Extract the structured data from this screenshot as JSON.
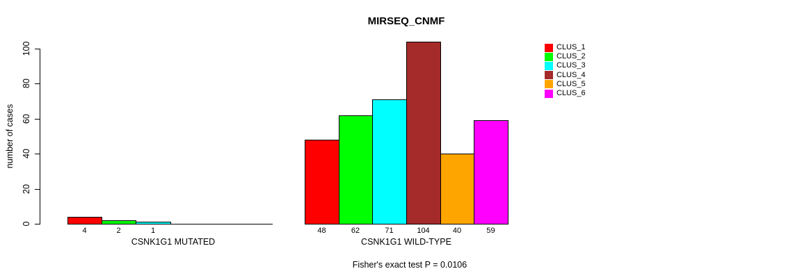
{
  "chart_data": {
    "type": "bar",
    "title": "MIRSEQ_CNMF",
    "ylabel": "number of cases",
    "ylim": [
      0,
      100
    ],
    "yticks": [
      0,
      20,
      40,
      60,
      80,
      100
    ],
    "grid": false,
    "bar_border_color": "#000000",
    "annotation": "Fisher's exact test P = 0.0106",
    "legend": {
      "position": "right",
      "entries": [
        {
          "label": "CLUS_1",
          "color": "#FF0000"
        },
        {
          "label": "CLUS_2",
          "color": "#00FF00"
        },
        {
          "label": "CLUS_3",
          "color": "#00FFFF"
        },
        {
          "label": "CLUS_4",
          "color": "#A52A2A"
        },
        {
          "label": "CLUS_5",
          "color": "#FFA500"
        },
        {
          "label": "CLUS_6",
          "color": "#FF00FF"
        }
      ]
    },
    "groups": [
      {
        "label": "CSNK1G1 MUTATED",
        "slots": 6,
        "series": [
          {
            "name": "CLUS_1",
            "value": 4,
            "color": "#FF0000"
          },
          {
            "name": "CLUS_2",
            "value": 2,
            "color": "#00FF00"
          },
          {
            "name": "CLUS_3",
            "value": 1,
            "color": "#00FFFF"
          }
        ]
      },
      {
        "label": "CSNK1G1 WILD-TYPE",
        "slots": 6,
        "series": [
          {
            "name": "CLUS_1",
            "value": 48,
            "color": "#FF0000"
          },
          {
            "name": "CLUS_2",
            "value": 62,
            "color": "#00FF00"
          },
          {
            "name": "CLUS_3",
            "value": 71,
            "color": "#00FFFF"
          },
          {
            "name": "CLUS_4",
            "value": 104,
            "color": "#A52A2A"
          },
          {
            "name": "CLUS_5",
            "value": 40,
            "color": "#FFA500"
          },
          {
            "name": "CLUS_6",
            "value": 59,
            "color": "#FF00FF"
          }
        ]
      }
    ]
  }
}
